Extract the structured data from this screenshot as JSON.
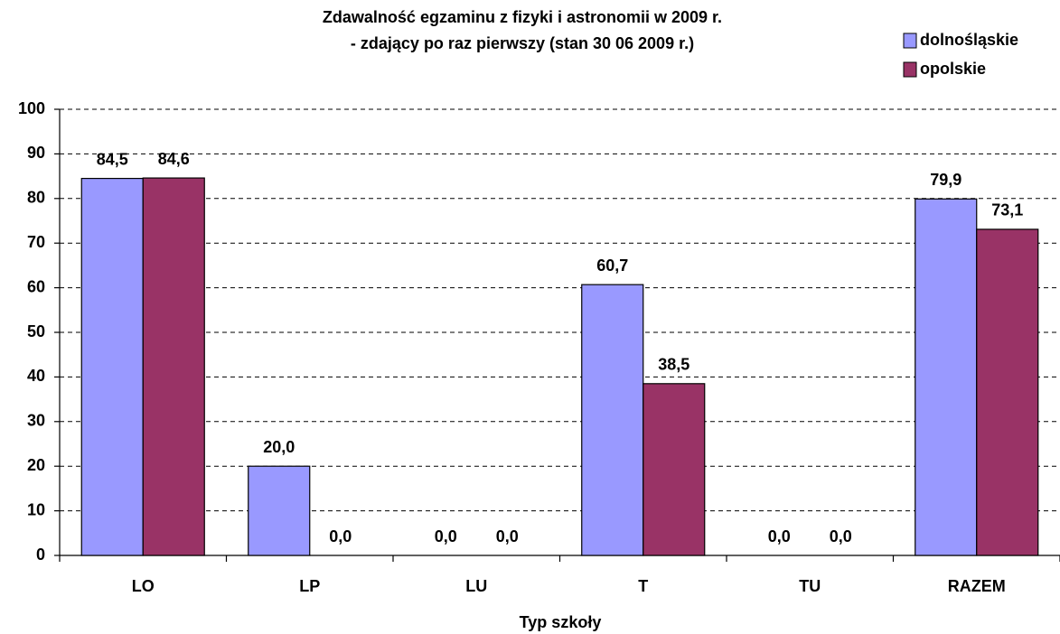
{
  "chart_data": {
    "type": "bar",
    "title": [
      "Zdawalność egzaminu z fizyki i astronomii w 2009 r.",
      "- zdający po raz pierwszy (stan 30 06 2009 r.)"
    ],
    "x_label": "Typ szkoły",
    "categories": [
      "LO",
      "LP",
      "LU",
      "T",
      "TU",
      "RAZEM"
    ],
    "series": [
      {
        "name": "dolnośląskie",
        "color": "#9999ff",
        "values": [
          84.5,
          20.0,
          0,
          60.7,
          0,
          79.9
        ],
        "value_labels": [
          "84,5",
          "20,0",
          "0,0",
          "60,7",
          "0,0",
          "79,9"
        ]
      },
      {
        "name": "opolskie",
        "color": "#993366",
        "values": [
          84.6,
          0,
          0,
          38.5,
          0,
          73.1
        ],
        "value_labels": [
          "84,6",
          "0,0",
          "0,0",
          "38,5",
          "0,0",
          "73,1"
        ]
      }
    ],
    "ylim": [
      0,
      100
    ],
    "yticks": [
      0,
      10,
      20,
      30,
      40,
      50,
      60,
      70,
      80,
      90,
      100
    ],
    "grid": true,
    "legend": "top-right"
  }
}
